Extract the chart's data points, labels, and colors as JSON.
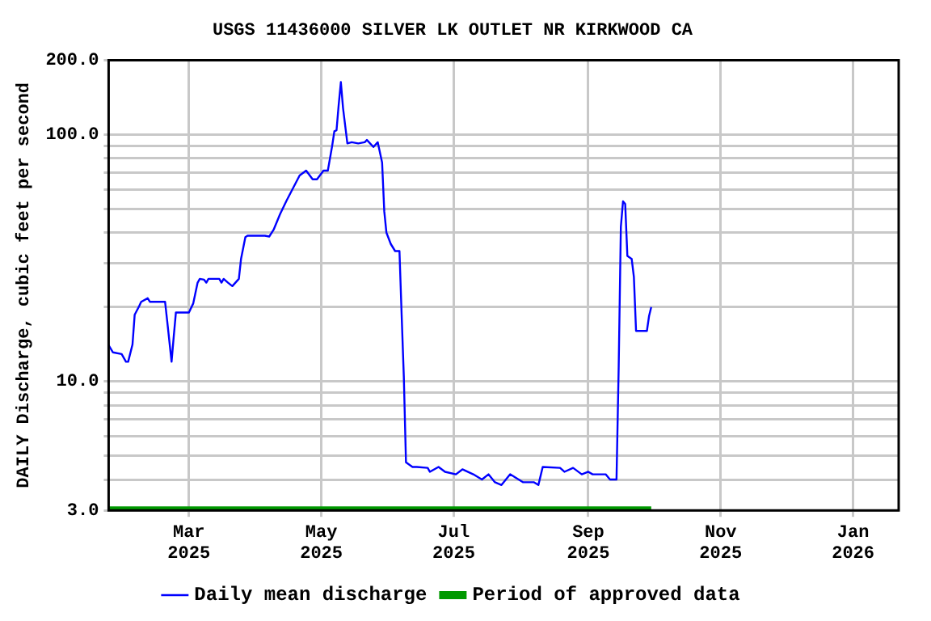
{
  "chart_data": {
    "type": "line",
    "title": "USGS 11436000 SILVER LK OUTLET NR KIRKWOOD CA",
    "ylabel": "DAILY Discharge, cubic feet per second",
    "log": "y",
    "grid": true,
    "legend": "bottom",
    "marker": "none",
    "xlim": [
      "2025-01-23",
      "2026-01-22"
    ],
    "xticks": [
      {
        "value": "2025-03-01",
        "label": "Mar 2025"
      },
      {
        "value": "2025-05-01",
        "label": "May 2025"
      },
      {
        "value": "2025-07-01",
        "label": "Jul 2025"
      },
      {
        "value": "2025-09-01",
        "label": "Sep 2025"
      },
      {
        "value": "2025-11-01",
        "label": "Nov 2025"
      },
      {
        "value": "2026-01-01",
        "label": "Jan 2026"
      }
    ],
    "ylim": [
      3,
      200
    ],
    "yticks": [
      {
        "value": 3,
        "label": "3.0"
      },
      {
        "value": 4,
        "label": null
      },
      {
        "value": 5,
        "label": null
      },
      {
        "value": 6,
        "label": null
      },
      {
        "value": 7,
        "label": null
      },
      {
        "value": 8,
        "label": null
      },
      {
        "value": 9,
        "label": null
      },
      {
        "value": 10,
        "label": "10.0"
      },
      {
        "value": 20,
        "label": null
      },
      {
        "value": 30,
        "label": null
      },
      {
        "value": 40,
        "label": null
      },
      {
        "value": 50,
        "label": null
      },
      {
        "value": 60,
        "label": null
      },
      {
        "value": 70,
        "label": null
      },
      {
        "value": 80,
        "label": null
      },
      {
        "value": 90,
        "label": null
      },
      {
        "value": 100,
        "label": "100.0"
      },
      {
        "value": 200,
        "label": "200.0"
      }
    ],
    "series": [
      {
        "name": "Daily mean discharge",
        "color": "#0000ff",
        "x": [
          "2025-01-23",
          "2025-01-25",
          "2025-01-29",
          "2025-01-31",
          "2025-02-01",
          "2025-02-03",
          "2025-02-04",
          "2025-02-06",
          "2025-02-07",
          "2025-02-10",
          "2025-02-11",
          "2025-02-18",
          "2025-02-19",
          "2025-02-21",
          "2025-02-22",
          "2025-02-23",
          "2025-03-01",
          "2025-03-03",
          "2025-03-05",
          "2025-03-06",
          "2025-03-08",
          "2025-03-09",
          "2025-03-10",
          "2025-03-15",
          "2025-03-16",
          "2025-03-17",
          "2025-03-19",
          "2025-03-21",
          "2025-03-24",
          "2025-03-25",
          "2025-03-27",
          "2025-03-28",
          "2025-04-05",
          "2025-04-07",
          "2025-04-09",
          "2025-04-12",
          "2025-04-15",
          "2025-04-18",
          "2025-04-21",
          "2025-04-24",
          "2025-04-27",
          "2025-04-29",
          "2025-05-02",
          "2025-05-04",
          "2025-05-06",
          "2025-05-07",
          "2025-05-08",
          "2025-05-09",
          "2025-05-10",
          "2025-05-11",
          "2025-05-13",
          "2025-05-15",
          "2025-05-18",
          "2025-05-21",
          "2025-05-22",
          "2025-05-25",
          "2025-05-27",
          "2025-05-29",
          "2025-05-30",
          "2025-05-31",
          "2025-06-02",
          "2025-06-04",
          "2025-06-06",
          "2025-06-07",
          "2025-06-08",
          "2025-06-09",
          "2025-06-12",
          "2025-06-14",
          "2025-06-19",
          "2025-06-20",
          "2025-06-24",
          "2025-06-27",
          "2025-07-02",
          "2025-07-05",
          "2025-07-10",
          "2025-07-14",
          "2025-07-17",
          "2025-07-20",
          "2025-07-23",
          "2025-07-27",
          "2025-08-02",
          "2025-08-07",
          "2025-08-09",
          "2025-08-11",
          "2025-08-19",
          "2025-08-21",
          "2025-08-25",
          "2025-08-29",
          "2025-09-01",
          "2025-09-03",
          "2025-09-09",
          "2025-09-11",
          "2025-09-14",
          "2025-09-15",
          "2025-09-16",
          "2025-09-17",
          "2025-09-18",
          "2025-09-19",
          "2025-09-21",
          "2025-09-22",
          "2025-09-23",
          "2025-09-28",
          "2025-09-29",
          "2025-09-30"
        ],
        "values": [
          14,
          13.1,
          12.9,
          12,
          12,
          14.1,
          18.6,
          20.1,
          21,
          21.7,
          21,
          21,
          17.5,
          12,
          15.2,
          19,
          19,
          20.7,
          25.1,
          26,
          25.8,
          25.1,
          26,
          26,
          25.1,
          26,
          25.1,
          24.3,
          26,
          31.3,
          38.4,
          38.9,
          38.9,
          38.6,
          41.1,
          47.6,
          54,
          60.7,
          68.2,
          71.4,
          65.8,
          65.8,
          71.4,
          71.4,
          90,
          103,
          104,
          132,
          163,
          128,
          92,
          93,
          92,
          93,
          95,
          89,
          93,
          77,
          48.8,
          40,
          36,
          33.7,
          33.7,
          18.6,
          10.5,
          4.7,
          4.5,
          4.5,
          4.46,
          4.3,
          4.5,
          4.3,
          4.2,
          4.4,
          4.2,
          4,
          4.2,
          3.9,
          3.8,
          4.2,
          3.9,
          3.9,
          3.8,
          4.5,
          4.46,
          4.3,
          4.46,
          4.2,
          4.3,
          4.2,
          4.2,
          4,
          4,
          11.4,
          42.2,
          53.6,
          52.3,
          32.2,
          31.3,
          26.5,
          16,
          16,
          18.4,
          20
        ]
      },
      {
        "name": "Period of approved data",
        "color": "#009900",
        "x": [
          "2025-01-23",
          "2025-09-30"
        ],
        "values": [
          3,
          3
        ]
      }
    ]
  }
}
